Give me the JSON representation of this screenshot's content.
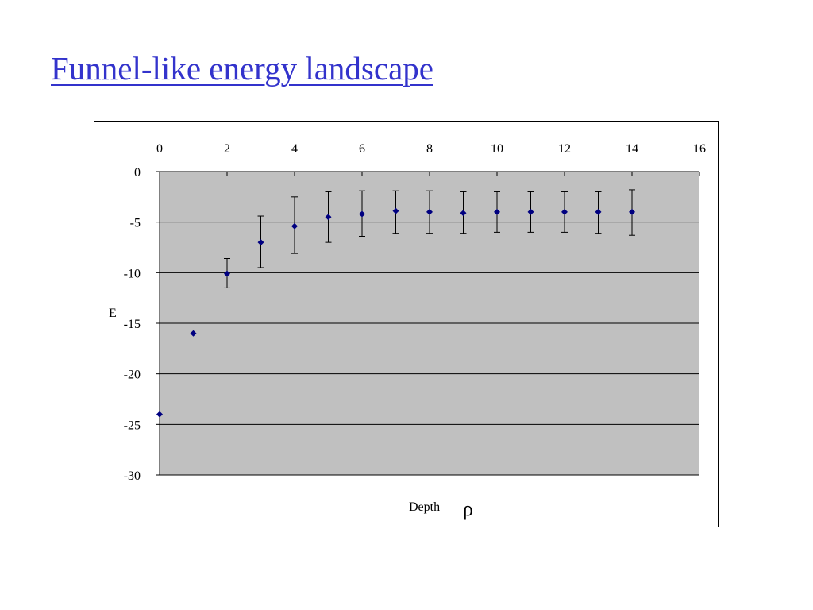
{
  "slide": {
    "title": "Funnel-like energy landscape"
  },
  "colors": {
    "title": "#3333cc",
    "plot_area": "#c0c0c0",
    "marker": "#000080",
    "gridline": "#000000"
  },
  "chart_data": {
    "type": "scatter",
    "title": "",
    "xlabel": "Depth",
    "xlabel_symbol": "ρ",
    "ylabel": "E",
    "xlim": [
      0,
      16
    ],
    "ylim": [
      -30,
      0
    ],
    "x_axis_position": "top",
    "xticks": [
      "0",
      "2",
      "4",
      "6",
      "8",
      "10",
      "12",
      "14",
      "16"
    ],
    "yticks": [
      "0",
      "-5",
      "-10",
      "-15",
      "-20",
      "-25",
      "-30"
    ],
    "grid": "horizontal",
    "legend": "none",
    "marker": "diamond",
    "points": [
      {
        "x": 0,
        "y": -24.0,
        "err_low": null,
        "err_high": null
      },
      {
        "x": 1,
        "y": -16.0,
        "err_low": null,
        "err_high": null
      },
      {
        "x": 2,
        "y": -10.1,
        "err_low": -11.5,
        "err_high": -8.6
      },
      {
        "x": 3,
        "y": -7.0,
        "err_low": -9.5,
        "err_high": -4.4
      },
      {
        "x": 4,
        "y": -5.4,
        "err_low": -8.1,
        "err_high": -2.5
      },
      {
        "x": 5,
        "y": -4.5,
        "err_low": -7.0,
        "err_high": -2.0
      },
      {
        "x": 6,
        "y": -4.2,
        "err_low": -6.4,
        "err_high": -1.9
      },
      {
        "x": 7,
        "y": -3.9,
        "err_low": -6.1,
        "err_high": -1.9
      },
      {
        "x": 8,
        "y": -4.0,
        "err_low": -6.1,
        "err_high": -1.9
      },
      {
        "x": 9,
        "y": -4.1,
        "err_low": -6.1,
        "err_high": -2.0
      },
      {
        "x": 10,
        "y": -4.0,
        "err_low": -6.0,
        "err_high": -2.0
      },
      {
        "x": 11,
        "y": -4.0,
        "err_low": -6.0,
        "err_high": -2.0
      },
      {
        "x": 12,
        "y": -4.0,
        "err_low": -6.0,
        "err_high": -2.0
      },
      {
        "x": 13,
        "y": -4.0,
        "err_low": -6.1,
        "err_high": -2.0
      },
      {
        "x": 14,
        "y": -4.0,
        "err_low": -6.3,
        "err_high": -1.8
      }
    ]
  }
}
